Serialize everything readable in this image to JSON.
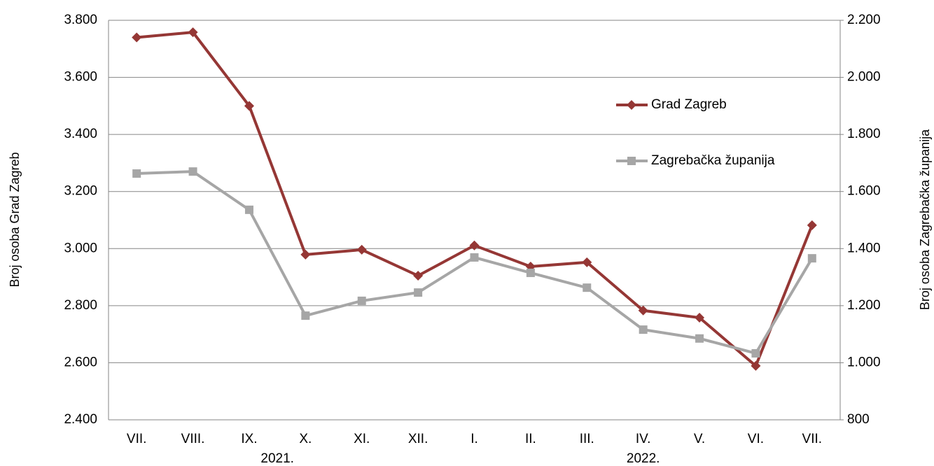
{
  "chart_data": {
    "type": "line",
    "categories": [
      "VII.",
      "VIII.",
      "IX.",
      "X.",
      "XI.",
      "XII.",
      "I.",
      "II.",
      "III.",
      "IV.",
      "V.",
      "VI.",
      "VII."
    ],
    "groups": [
      {
        "label": "2021.",
        "count": 6
      },
      {
        "label": "2022.",
        "count": 7
      }
    ],
    "ylabel": "Broj osoba Grad Zagreb",
    "y2label": "Broj osoba Zagrebačka županija",
    "ylim": [
      2400,
      3800
    ],
    "yticks": [
      {
        "value": 2400,
        "label": "2.400"
      },
      {
        "value": 2600,
        "label": "2.600"
      },
      {
        "value": 2800,
        "label": "2.800"
      },
      {
        "value": 3000,
        "label": "3.000"
      },
      {
        "value": 3200,
        "label": "3.200"
      },
      {
        "value": 3400,
        "label": "3.400"
      },
      {
        "value": 3600,
        "label": "3.600"
      },
      {
        "value": 3800,
        "label": "3.800"
      }
    ],
    "y2lim": [
      800,
      2200
    ],
    "y2ticks": [
      800,
      {
        "value": 1000,
        "label": "1.000"
      },
      {
        "value": 1200,
        "label": "1.200"
      },
      {
        "value": 1400,
        "label": "1.400"
      },
      {
        "value": 1600,
        "label": "1.600"
      },
      {
        "value": 1800,
        "label": "1.800"
      },
      {
        "value": 2000,
        "label": "2.000"
      },
      {
        "value": 2200,
        "label": "2.200"
      }
    ],
    "grid": true,
    "series": [
      {
        "name": "Grad Zagreb",
        "color": "#953735",
        "marker": "diamond",
        "axis": "y",
        "values": [
          3740,
          3758,
          3500,
          2979,
          2996,
          2905,
          3011,
          2937,
          2952,
          2783,
          2758,
          2589,
          3082
        ]
      },
      {
        "name": "Zagrebačka županija",
        "color": "#a6a6a6",
        "marker": "square",
        "axis": "y2",
        "values": [
          1663,
          1670,
          1536,
          1165,
          1217,
          1246,
          1369,
          1315,
          1263,
          1116,
          1085,
          1033,
          1366
        ]
      }
    ]
  }
}
